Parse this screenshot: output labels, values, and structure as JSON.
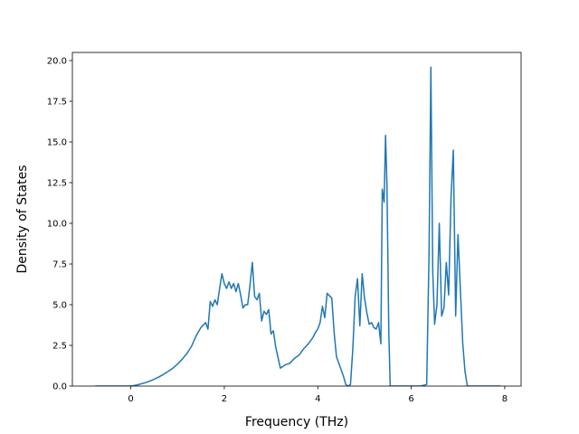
{
  "chart_data": {
    "type": "line",
    "title": "",
    "xlabel": "Frequency (THz)",
    "ylabel": "Density of States",
    "xlim": [
      -1.25,
      8.35
    ],
    "ylim": [
      0,
      20.5
    ],
    "xticks": [
      0,
      2,
      4,
      6,
      8
    ],
    "xtick_labels": [
      "0",
      "2",
      "4",
      "6",
      "8"
    ],
    "yticks": [
      0,
      2.5,
      5,
      7.5,
      10,
      12.5,
      15,
      17.5,
      20
    ],
    "ytick_labels": [
      "0.0",
      "2.5",
      "5.0",
      "7.5",
      "10.0",
      "12.5",
      "15.0",
      "17.5",
      "20.0"
    ],
    "grid": false,
    "legend": "none",
    "series": [
      {
        "color": "#1f77b4",
        "x": [
          -0.75,
          -0.5,
          -0.25,
          0.0,
          0.1,
          0.2,
          0.3,
          0.4,
          0.5,
          0.6,
          0.7,
          0.8,
          0.9,
          1.0,
          1.1,
          1.2,
          1.3,
          1.4,
          1.5,
          1.6,
          1.65,
          1.7,
          1.75,
          1.8,
          1.85,
          1.9,
          1.95,
          2.0,
          2.05,
          2.1,
          2.15,
          2.2,
          2.25,
          2.3,
          2.35,
          2.4,
          2.45,
          2.5,
          2.55,
          2.6,
          2.65,
          2.7,
          2.75,
          2.8,
          2.85,
          2.9,
          2.95,
          3.0,
          3.05,
          3.1,
          3.2,
          3.3,
          3.4,
          3.5,
          3.6,
          3.7,
          3.8,
          3.9,
          3.95,
          4.0,
          4.05,
          4.1,
          4.15,
          4.2,
          4.3,
          4.35,
          4.4,
          4.45,
          4.5,
          4.55,
          4.6,
          4.65,
          4.7,
          4.75,
          4.8,
          4.85,
          4.9,
          4.95,
          5.0,
          5.05,
          5.1,
          5.15,
          5.2,
          5.25,
          5.3,
          5.35,
          5.38,
          5.42,
          5.45,
          5.48,
          5.52,
          5.55,
          5.58,
          5.65,
          5.8,
          6.0,
          6.2,
          6.33,
          6.38,
          6.42,
          6.46,
          6.5,
          6.55,
          6.6,
          6.65,
          6.7,
          6.75,
          6.8,
          6.85,
          6.9,
          6.95,
          7.0,
          7.05,
          7.1,
          7.15,
          7.2,
          7.3,
          7.5,
          7.7,
          7.9
        ],
        "y": [
          0.0,
          0.0,
          0.0,
          0.0,
          0.05,
          0.12,
          0.2,
          0.3,
          0.42,
          0.56,
          0.72,
          0.9,
          1.1,
          1.35,
          1.65,
          2.0,
          2.45,
          3.1,
          3.6,
          3.9,
          3.5,
          5.2,
          4.9,
          5.3,
          5.0,
          6.0,
          6.9,
          6.3,
          6.0,
          6.4,
          6.0,
          6.3,
          5.8,
          6.3,
          5.6,
          4.8,
          5.0,
          5.0,
          6.2,
          7.6,
          5.5,
          5.3,
          5.7,
          4.0,
          4.6,
          4.4,
          4.7,
          3.2,
          3.4,
          2.4,
          1.1,
          1.3,
          1.4,
          1.7,
          1.9,
          2.3,
          2.6,
          3.0,
          3.3,
          3.5,
          3.9,
          4.9,
          4.2,
          5.7,
          5.4,
          3.3,
          1.8,
          1.4,
          1.0,
          0.6,
          0.1,
          0.0,
          0.1,
          2.3,
          5.5,
          6.6,
          3.7,
          6.9,
          5.4,
          4.5,
          3.8,
          3.9,
          3.6,
          3.5,
          3.9,
          2.6,
          12.1,
          11.3,
          15.4,
          12.4,
          3.3,
          0.0,
          0.0,
          0.0,
          0.0,
          0.0,
          0.0,
          0.1,
          8.0,
          19.6,
          7.0,
          3.8,
          5.0,
          10.0,
          4.3,
          4.8,
          7.6,
          5.6,
          11.5,
          14.5,
          4.3,
          9.3,
          6.0,
          2.7,
          0.9,
          0.0,
          0.0,
          0.0,
          0.0,
          0.0
        ]
      }
    ]
  }
}
